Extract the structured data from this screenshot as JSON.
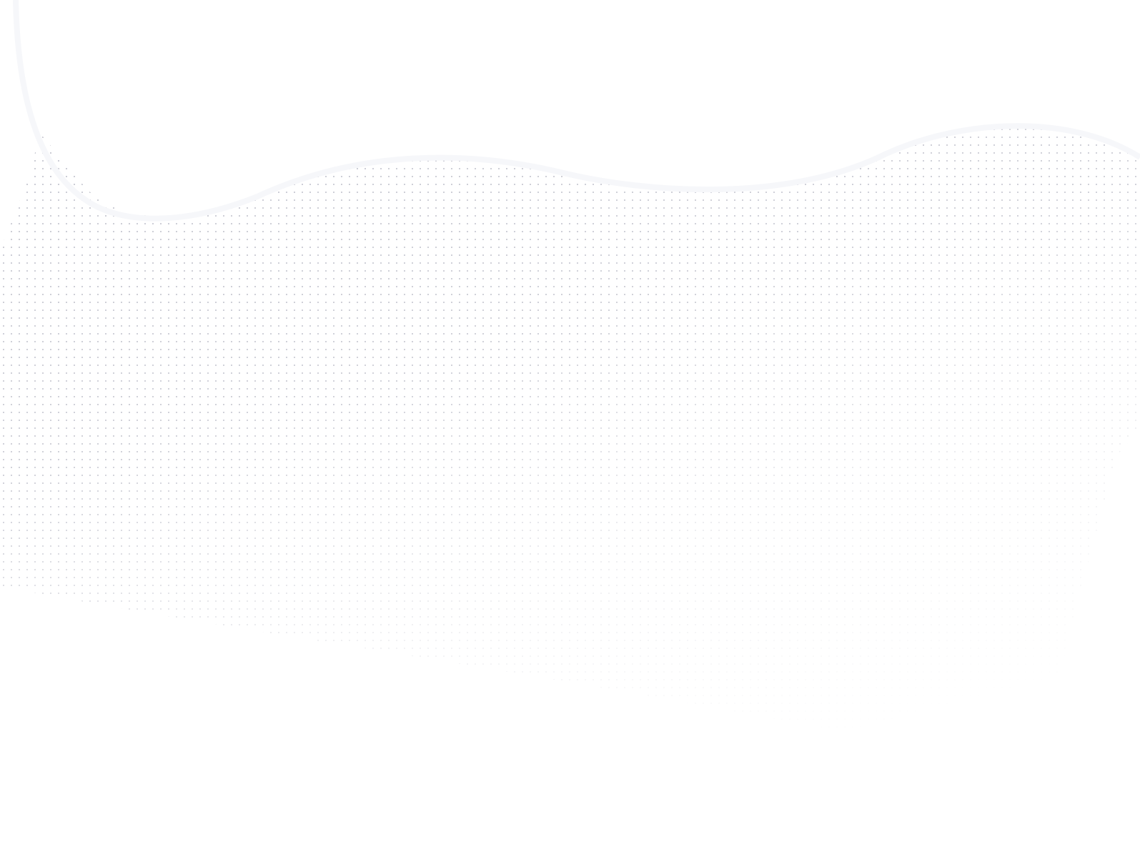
{
  "background": {
    "base_color": "#ffffff",
    "dot_color": "#c9cad3",
    "wave_stroke_color": "#f6f7fa",
    "pattern": "dot-grid"
  }
}
